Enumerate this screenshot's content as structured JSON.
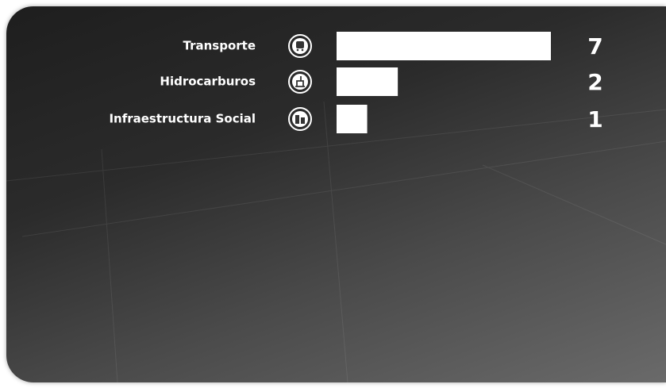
{
  "chart_data": {
    "type": "bar",
    "orientation": "horizontal",
    "categories": [
      "Transporte",
      "Hidrocarburos",
      "Infraestructura Social"
    ],
    "values": [
      7,
      2,
      1
    ],
    "color": "#ffffff"
  }
}
